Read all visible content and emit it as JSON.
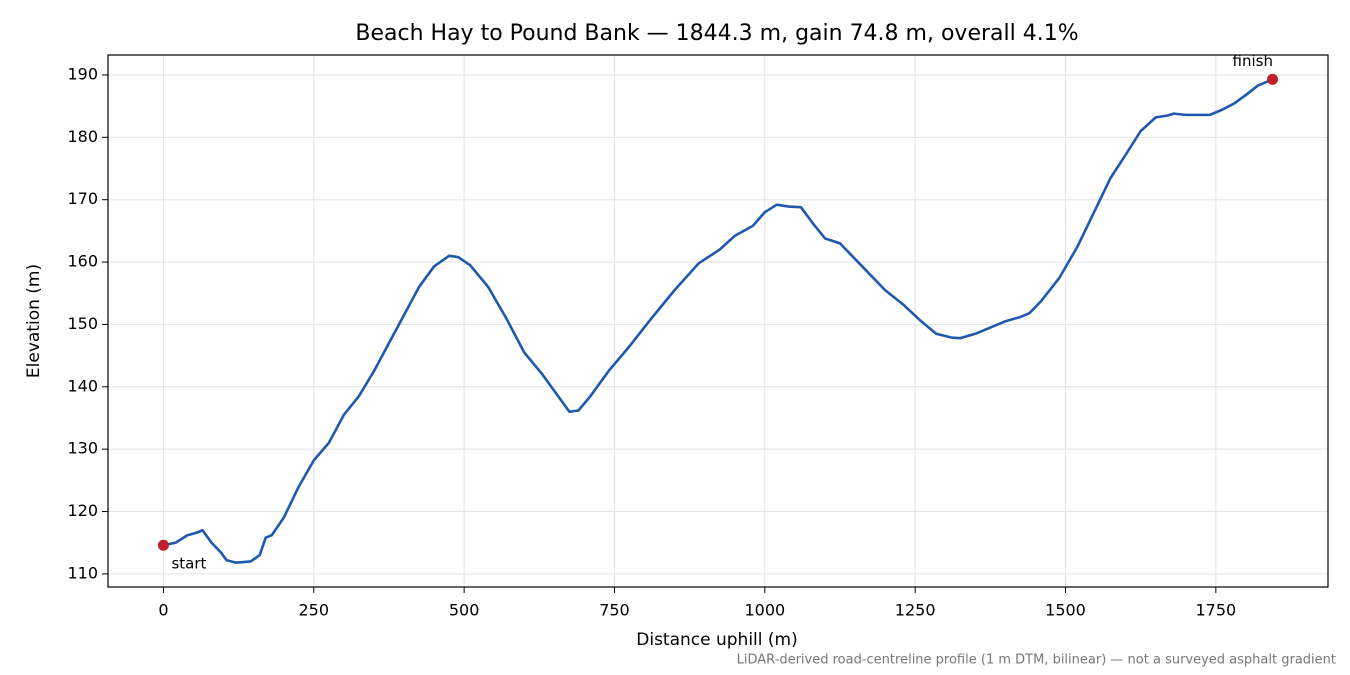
{
  "chart_data": {
    "type": "line",
    "title": "Beach Hay to Pound Bank — 1844.3 m, gain 74.8 m, overall 4.1%",
    "x_label": "Distance uphill (m)",
    "y_label": "Elevation (m)",
    "footnote": "LiDAR-derived road-centreline profile (1 m DTM, bilinear) — not a surveyed asphalt gradient",
    "annotations": [
      "start",
      "finish"
    ],
    "marker_color": "#c0202a",
    "x": [
      0,
      20,
      40,
      55,
      65,
      80,
      95,
      105,
      120,
      145,
      160,
      170,
      180,
      200,
      225,
      250,
      275,
      300,
      325,
      350,
      375,
      400,
      425,
      450,
      475,
      490,
      510,
      540,
      570,
      600,
      630,
      660,
      675,
      690,
      710,
      740,
      775,
      810,
      850,
      890,
      925,
      950,
      980,
      1000,
      1020,
      1040,
      1060,
      1080,
      1100,
      1125,
      1150,
      1175,
      1200,
      1230,
      1260,
      1285,
      1310,
      1325,
      1350,
      1375,
      1400,
      1425,
      1440,
      1460,
      1490,
      1520,
      1550,
      1575,
      1600,
      1625,
      1650,
      1670,
      1680,
      1700,
      1740,
      1760,
      1780,
      1800,
      1820,
      1844.3
    ],
    "series": [
      {
        "name": "Elevation",
        "color": "#2058b0",
        "values": [
          114.6,
          115,
          116.2,
          116.6,
          117,
          115,
          113.5,
          112.2,
          111.8,
          112,
          113,
          115.8,
          116.2,
          119,
          124,
          128.2,
          131,
          135.5,
          138.5,
          142.5,
          147,
          151.5,
          156,
          159.3,
          161,
          160.8,
          159.5,
          156,
          151,
          145.5,
          142,
          138,
          136,
          136.2,
          138.5,
          142.5,
          146.5,
          150.8,
          155.5,
          159.8,
          162,
          164.2,
          165.8,
          168,
          169.2,
          168.9,
          168.8,
          166.2,
          163.8,
          163,
          160.5,
          158,
          155.5,
          153.2,
          150.5,
          148.5,
          147.9,
          147.8,
          148.5,
          149.5,
          150.5,
          151.2,
          151.8,
          153.8,
          157.5,
          162.5,
          168.5,
          173.5,
          177.2,
          181,
          183.2,
          183.5,
          183.8,
          183.6,
          183.6,
          184.4,
          185.4,
          186.8,
          188.3,
          189.3
        ]
      }
    ],
    "xlim": [
      -92.2,
      1936.5
    ],
    "xticks": [
      0,
      250,
      500,
      750,
      1000,
      1250,
      1500,
      1750
    ],
    "ylim": [
      107.9,
      193.2
    ],
    "yticks": [
      110,
      120,
      130,
      140,
      150,
      160,
      170,
      180,
      190
    ],
    "grid": true
  }
}
